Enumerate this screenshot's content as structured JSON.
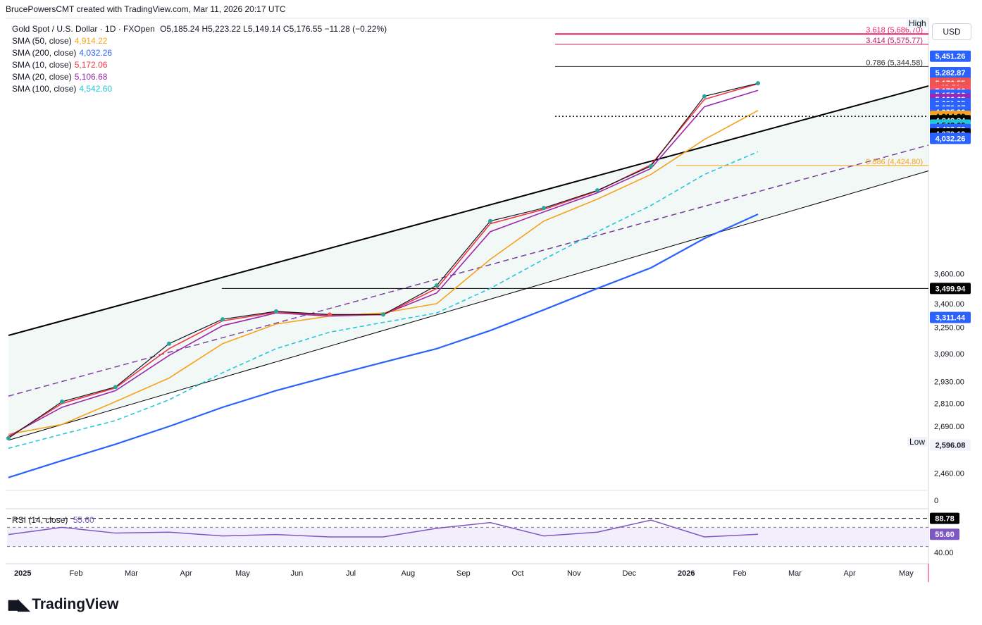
{
  "header": {
    "caption": "BrucePowersCMT created with TradingView.com, Mar 11, 2026 20:17 UTC",
    "symbol_line": "Gold Spot / U.S. Dollar · 1D · FXOpen",
    "ohlc": "O5,185.24 H5,223.22 L5,149.14 C5,176.55 −11.28 (−0.22%)"
  },
  "legend": [
    {
      "label": "SMA (50, close)",
      "value": "4,914.22",
      "color": "#f7a21b"
    },
    {
      "label": "SMA (200, close)",
      "value": "4,032.26",
      "color": "#2962ff"
    },
    {
      "label": "SMA (10, close)",
      "value": "5,172.06",
      "color": "#f23645"
    },
    {
      "label": "SMA (20, close)",
      "value": "5,106.68",
      "color": "#9c27b0"
    },
    {
      "label": "SMA (100, close)",
      "value": "4,542.60",
      "color": "#26c6da"
    }
  ],
  "rsi": {
    "label": "RSI (14, close)",
    "value": "55.60",
    "upper": "88.78",
    "mid_label": "40.00",
    "zero": "0"
  },
  "currency": "USD",
  "high_tag": "High",
  "low_tag": "Low",
  "fib_labels": [
    {
      "text": "3.618 (5,686.70)",
      "color": "#e91e63"
    },
    {
      "text": "3.414 (5,575.77)",
      "color": "#c2185b"
    },
    {
      "text": "0.786 (5,344.58)",
      "color": "#333333"
    },
    {
      "text": "0.886 (4,424.80)",
      "color": "#f7a21b"
    }
  ],
  "price_axis_ticks": [
    "3,600.00",
    "3,400.00",
    "3,250.00",
    "3,090.00",
    "2,930.00",
    "2,810.00",
    "2,690.00",
    "2,460.00"
  ],
  "price_tags": [
    {
      "text": "5,451.26",
      "bg": "#2962ff",
      "fg": "#ffffff",
      "price": 5451.26
    },
    {
      "text": "5,282.87",
      "bg": "#2962ff",
      "fg": "#ffffff",
      "price": 5282.87
    },
    {
      "text": "5,196.37",
      "bg": "#2962ff",
      "fg": "#ffffff",
      "price": 5196.37
    },
    {
      "text": "5,176.55",
      "bg": "#ef5350",
      "fg": "#ffffff",
      "price": 5176.55
    },
    {
      "text": "42:51",
      "bg": "#ef5350",
      "fg": "#ffffff",
      "price": 5135
    },
    {
      "text": "5,172.06",
      "bg": "#f7525f",
      "fg": "#ffffff",
      "price": 5100
    },
    {
      "text": "5,156.16",
      "bg": "#2962ff",
      "fg": "#ffffff",
      "price": 5060
    },
    {
      "text": "5,106.68",
      "bg": "#9c27b0",
      "fg": "#ffffff",
      "price": 5020
    },
    {
      "text": "5,091.95",
      "bg": "#2962ff",
      "fg": "#ffffff",
      "price": 4980
    },
    {
      "text": "5,079.07",
      "bg": "#2962ff",
      "fg": "#ffffff",
      "price": 4940
    },
    {
      "text": "4,995.90",
      "bg": "#2962ff",
      "fg": "#ffffff",
      "price": 4900
    },
    {
      "text": "4,914.22",
      "bg": "#f7a21b",
      "fg": "#000000",
      "price": 4860
    },
    {
      "text": "4,842.34",
      "bg": "#000000",
      "fg": "#ffffff",
      "price": 4820
    },
    {
      "text": "4,542.60",
      "bg": "#26c6da",
      "fg": "#000000",
      "price": 4780
    },
    {
      "text": "4,402.39",
      "bg": "#2962ff",
      "fg": "#ffffff",
      "price": 4740
    },
    {
      "text": "4,379.19",
      "bg": "#000000",
      "fg": "#ffffff",
      "price": 4700
    },
    {
      "text": "4,032.26",
      "bg": "#2962ff",
      "fg": "#ffffff",
      "price": 4660
    },
    {
      "text": "3,499.94",
      "bg": "#000000",
      "fg": "#ffffff",
      "price": 3499.94
    },
    {
      "text": "3,311.44",
      "bg": "#2962ff",
      "fg": "#ffffff",
      "price": 3311.44
    },
    {
      "text": "2,596.08",
      "bg": "#f0f3fa",
      "fg": "#131722",
      "price": 2596.08
    }
  ],
  "time_axis": [
    "2025",
    "Feb",
    "Mar",
    "Apr",
    "May",
    "Jun",
    "Jul",
    "Aug",
    "Sep",
    "Oct",
    "Nov",
    "Dec",
    "2026",
    "Feb",
    "Mar",
    "Apr",
    "May"
  ],
  "chart_data": {
    "type": "line",
    "title": "Gold Spot / U.S. Dollar · 1D · FXOpen",
    "x_months": [
      "2025-01",
      "2025-02",
      "2025-03",
      "2025-04",
      "2025-05",
      "2025-06",
      "2025-07",
      "2025-08",
      "2025-09",
      "2025-10",
      "2025-11",
      "2025-12",
      "2026-01",
      "2026-02",
      "2026-03"
    ],
    "series": [
      {
        "name": "Gold Spot / U.S. Dollar",
        "values": [
          2630,
          2820,
          2900,
          3150,
          3300,
          3350,
          3330,
          3330,
          3520,
          3980,
          4080,
          4220,
          4420,
          5050,
          5176.55
        ]
      },
      {
        "name": "SMA (50, close)",
        "values": [
          2650,
          2700,
          2820,
          2950,
          3150,
          3270,
          3320,
          3340,
          3400,
          3700,
          3980,
          4150,
          4350,
          4650,
          4914.22
        ]
      },
      {
        "name": "SMA (200, close)",
        "values": [
          2440,
          2520,
          2600,
          2690,
          2790,
          2880,
          2960,
          3040,
          3120,
          3230,
          3360,
          3500,
          3640,
          3850,
          4032.26
        ]
      },
      {
        "name": "SMA (100, close)",
        "values": [
          2580,
          2650,
          2720,
          2830,
          2980,
          3120,
          3220,
          3280,
          3340,
          3500,
          3700,
          3900,
          4100,
          4350,
          4542.6
        ]
      },
      {
        "name": "SMA (20, close)",
        "values": [
          2640,
          2790,
          2880,
          3080,
          3260,
          3340,
          3320,
          3330,
          3470,
          3900,
          4050,
          4200,
          4400,
          4950,
          5106.68
        ]
      },
      {
        "name": "SMA (10, close)",
        "values": [
          2635,
          2810,
          2895,
          3120,
          3290,
          3345,
          3328,
          3328,
          3500,
          3960,
          4070,
          4215,
          4430,
          5020,
          5172.06
        ]
      }
    ],
    "rsi_values": [
      55,
      70,
      58,
      60,
      52,
      55,
      50,
      50,
      68,
      80,
      52,
      60,
      85,
      50,
      55.6
    ],
    "ylim": [
      2400,
      5750
    ],
    "log_scale": true,
    "fib_levels": [
      5686.7,
      5575.77,
      5344.58,
      4424.8
    ],
    "horizontal_levels": [
      3499.94
    ],
    "high_label": "High",
    "low_label": "Low",
    "grid": false
  }
}
